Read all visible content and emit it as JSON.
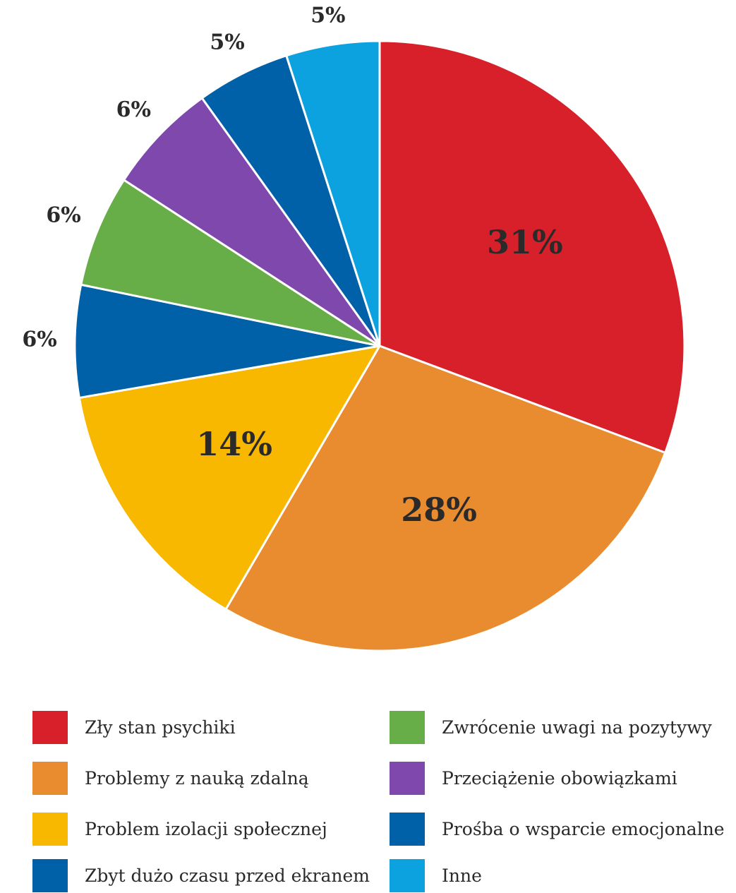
{
  "chart_data": {
    "type": "pie",
    "start_angle_deg": 0,
    "direction": "clockwise",
    "slices": [
      {
        "label": "Zły stan psychiki",
        "value": 31,
        "display": "31%",
        "color": "#d7202a",
        "label_placement": "inside"
      },
      {
        "label": "Problemy z nauką zdalną",
        "value": 28,
        "display": "28%",
        "color": "#e98b2f",
        "label_placement": "inside"
      },
      {
        "label": "Problem izolacji społecznej",
        "value": 14,
        "display": "14%",
        "color": "#f8b800",
        "label_placement": "inside"
      },
      {
        "label": "Zbyt dużo czasu przed ekranem",
        "value": 6,
        "display": "6%",
        "color": "#0060a8",
        "label_placement": "outside"
      },
      {
        "label": "Zwrócenie uwagi na pozytywy",
        "value": 6,
        "display": "6%",
        "color": "#67ae48",
        "label_placement": "outside"
      },
      {
        "label": "Przeciążenie obowiązkami",
        "value": 6,
        "display": "6%",
        "color": "#7f48ad",
        "label_placement": "outside"
      },
      {
        "label": "Prośba o wsparcie emocjonalne",
        "value": 5,
        "display": "5%",
        "color": "#0060a8",
        "label_placement": "outside"
      },
      {
        "label": "Inne",
        "value": 5,
        "display": "5%",
        "color": "#0ba2df",
        "label_placement": "outside"
      }
    ],
    "legend": {
      "placement": "bottom",
      "columns": [
        [
          "Zły stan psychiki",
          "Problemy z nauką zdalną",
          "Problem izolacji społecznej",
          "Zbyt dużo czasu przed ekranem"
        ],
        [
          "Zwrócenie uwagi na pozytywy",
          "Przeciążenie obowiązkami",
          "Prośba o wsparcie emocjonalne",
          "Inne"
        ]
      ]
    }
  }
}
